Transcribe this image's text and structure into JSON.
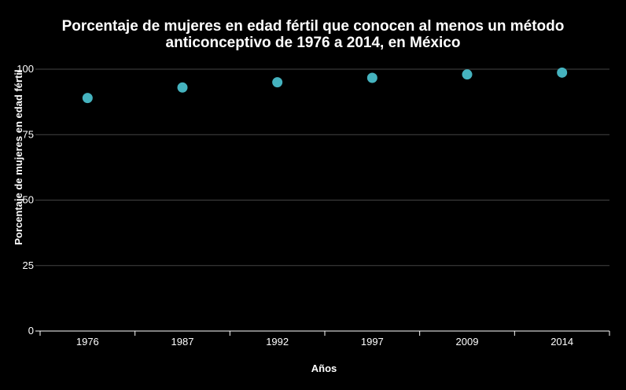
{
  "chart_data": {
    "type": "scatter",
    "title_lines": [
      "Porcentaje de mujeres en edad fértil que conocen al menos un método",
      "anticonceptivo de 1976 a 2014, en México"
    ],
    "xlabel": "Años",
    "ylabel": "Porcentaje de mujeres en edad fértil",
    "categories": [
      "1976",
      "1987",
      "1992",
      "1997",
      "2009",
      "2014"
    ],
    "values": [
      89,
      93,
      95,
      96.7,
      98,
      98.7
    ],
    "ylim": [
      0,
      100
    ],
    "yticks": [
      "0",
      "25",
      "50",
      "75",
      "100"
    ],
    "grid": true,
    "marker_color": "#45b3bf",
    "grid_color": "#444444",
    "axis_color": "#ffffff"
  }
}
